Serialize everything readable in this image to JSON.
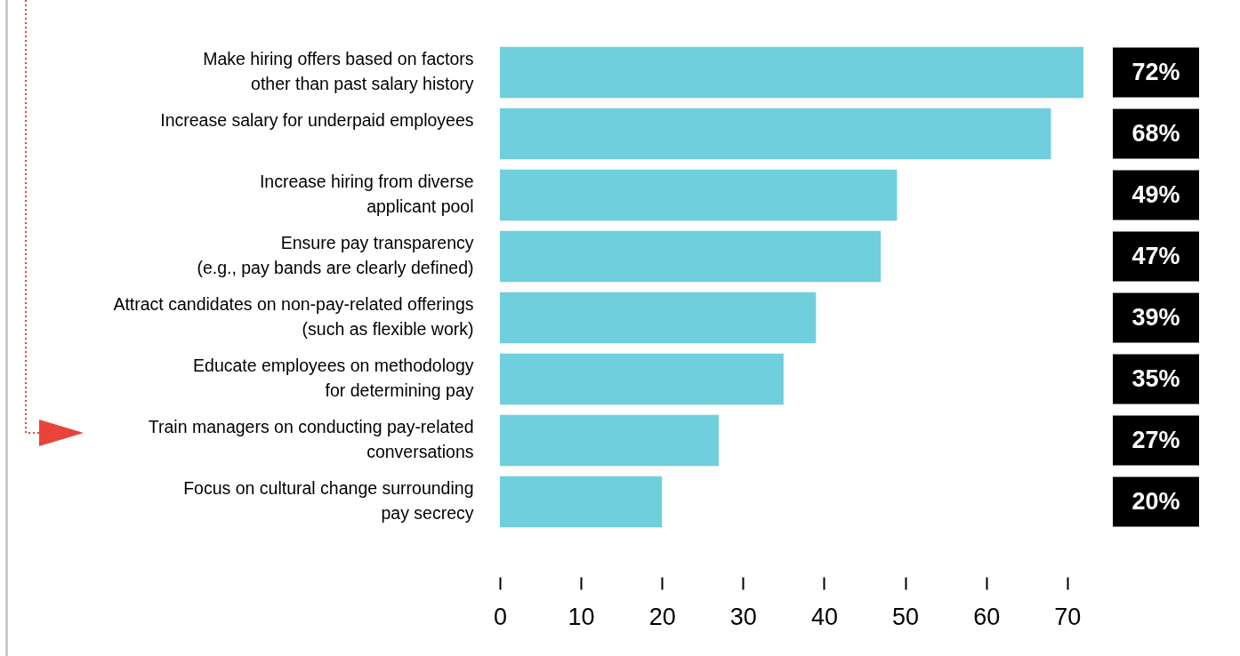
{
  "chart_data": {
    "type": "bar",
    "orientation": "horizontal",
    "categories": [
      "Make hiring offers based on factors\nother than past salary history",
      "Increase salary for underpaid employees",
      "Increase hiring from diverse\napplicant pool",
      "Ensure pay transparency\n(e.g., pay bands are clearly defined)",
      "Attract candidates on non-pay-related offerings\n(such as flexible work)",
      "Educate employees on methodology\nfor determining pay",
      "Train managers on conducting pay-related\nconversations",
      "Focus on cultural change surrounding\npay secrecy"
    ],
    "values": [
      72,
      68,
      49,
      47,
      39,
      35,
      27,
      20
    ],
    "value_labels": [
      "72%",
      "68%",
      "49%",
      "47%",
      "39%",
      "35%",
      "27%",
      "20%"
    ],
    "color": "#70cfdc",
    "xlim": [
      0,
      72
    ],
    "xticks": [
      0,
      10,
      20,
      30,
      40,
      50,
      60,
      70
    ],
    "grid": false
  }
}
